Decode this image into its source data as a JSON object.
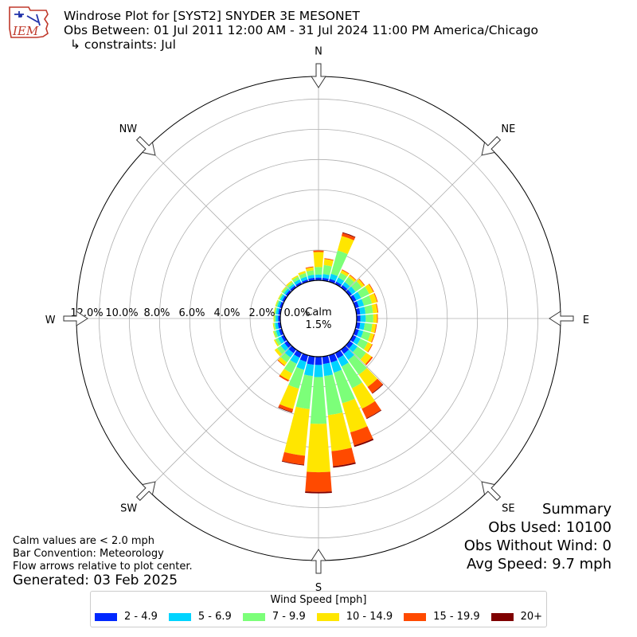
{
  "header": {
    "title": "Windrose Plot for [SYST2] SNYDER 3E MESONET",
    "obs_between": "Obs Between: 01 Jul 2011 12:00 AM - 31 Jul 2024 11:00 PM America/Chicago",
    "constraints": "↳ constraints: Jul"
  },
  "logo": {
    "text": "IEM"
  },
  "summary": {
    "heading": "Summary",
    "obs_used": "Obs Used: 10100",
    "obs_without_wind": "Obs Without Wind: 0",
    "avg_speed": "Avg Speed: 9.7 mph"
  },
  "notes": {
    "calm_note": "Calm values are < 2.0 mph",
    "bar_convention": "Bar Convention: Meteorology",
    "flow_arrows": "Flow arrows relative to plot center.",
    "generated": "Generated: 03 Feb 2025"
  },
  "chart_data": {
    "type": "windrose",
    "calm_label": "Calm\n1.5%",
    "calm_line1": "Calm",
    "calm_line2": "1.5%",
    "calm_percent": 1.5,
    "directions": [
      "N",
      "NE",
      "E",
      "SE",
      "S",
      "SW",
      "W",
      "NW"
    ],
    "radial_ticks": [
      "0.0%",
      "2.0%",
      "4.0%",
      "6.0%",
      "8.0%",
      "10.0%",
      "12.0%"
    ],
    "rmax": 13.5,
    "legend_title": "Wind Speed [mph]",
    "bins": [
      "2 - 4.9",
      "5 - 6.9",
      "7 - 9.9",
      "10 - 14.9",
      "15 - 19.9",
      "20+"
    ],
    "colors": [
      "#0028ff",
      "#00d4ff",
      "#7cff79",
      "#ffe600",
      "#ff4a00",
      "#7f0000"
    ],
    "sector_width_deg": 10,
    "sectors": [
      [
        0.18,
        0.2,
        0.5,
        1.0,
        0.1,
        0.0
      ],
      [
        0.18,
        0.25,
        0.6,
        0.4,
        0.05,
        0.0
      ],
      [
        0.2,
        0.35,
        1.6,
        1.0,
        0.2,
        0.05
      ],
      [
        0.18,
        0.3,
        0.35,
        0.2,
        0.05,
        0.0
      ],
      [
        0.2,
        0.25,
        0.4,
        0.15,
        0.05,
        0.0
      ],
      [
        0.2,
        0.3,
        0.5,
        0.2,
        0.05,
        0.0
      ],
      [
        0.25,
        0.35,
        0.6,
        0.3,
        0.05,
        0.0
      ],
      [
        0.25,
        0.35,
        0.55,
        0.35,
        0.05,
        0.0
      ],
      [
        0.25,
        0.35,
        0.5,
        0.3,
        0.05,
        0.0
      ],
      [
        0.25,
        0.35,
        0.5,
        0.25,
        0.05,
        0.0
      ],
      [
        0.25,
        0.3,
        0.5,
        0.25,
        0.05,
        0.0
      ],
      [
        0.25,
        0.3,
        0.5,
        0.25,
        0.05,
        0.0
      ],
      [
        0.25,
        0.3,
        0.55,
        0.3,
        0.05,
        0.0
      ],
      [
        0.3,
        0.35,
        0.7,
        0.45,
        0.1,
        0.0
      ],
      [
        0.35,
        0.5,
        1.2,
        1.0,
        0.5,
        0.05
      ],
      [
        0.4,
        0.6,
        1.6,
        1.5,
        0.7,
        0.05
      ],
      [
        0.5,
        0.7,
        2.1,
        2.0,
        0.9,
        0.1
      ],
      [
        0.5,
        0.8,
        2.6,
        2.4,
        1.0,
        0.1
      ],
      [
        0.55,
        0.8,
        3.1,
        3.2,
        1.3,
        0.1
      ],
      [
        0.55,
        0.75,
        2.2,
        3.1,
        0.6,
        0.05
      ],
      [
        0.45,
        0.55,
        1.3,
        1.4,
        0.2,
        0.05
      ],
      [
        0.35,
        0.45,
        0.7,
        0.5,
        0.1,
        0.0
      ],
      [
        0.3,
        0.35,
        0.4,
        0.25,
        0.05,
        0.0
      ],
      [
        0.25,
        0.3,
        0.3,
        0.2,
        0.0,
        0.0
      ],
      [
        0.2,
        0.25,
        0.2,
        0.1,
        0.0,
        0.0
      ],
      [
        0.2,
        0.2,
        0.15,
        0.05,
        0.0,
        0.0
      ],
      [
        0.18,
        0.18,
        0.1,
        0.05,
        0.0,
        0.0
      ],
      [
        0.15,
        0.15,
        0.1,
        0.05,
        0.0,
        0.0
      ],
      [
        0.15,
        0.15,
        0.1,
        0.05,
        0.0,
        0.0
      ],
      [
        0.15,
        0.15,
        0.1,
        0.05,
        0.0,
        0.0
      ],
      [
        0.15,
        0.15,
        0.1,
        0.05,
        0.0,
        0.0
      ],
      [
        0.15,
        0.15,
        0.15,
        0.05,
        0.0,
        0.0
      ],
      [
        0.15,
        0.15,
        0.15,
        0.1,
        0.0,
        0.0
      ],
      [
        0.15,
        0.2,
        0.2,
        0.1,
        0.0,
        0.0
      ],
      [
        0.15,
        0.2,
        0.25,
        0.15,
        0.0,
        0.0
      ],
      [
        0.18,
        0.2,
        0.3,
        0.2,
        0.05,
        0.0
      ]
    ]
  }
}
